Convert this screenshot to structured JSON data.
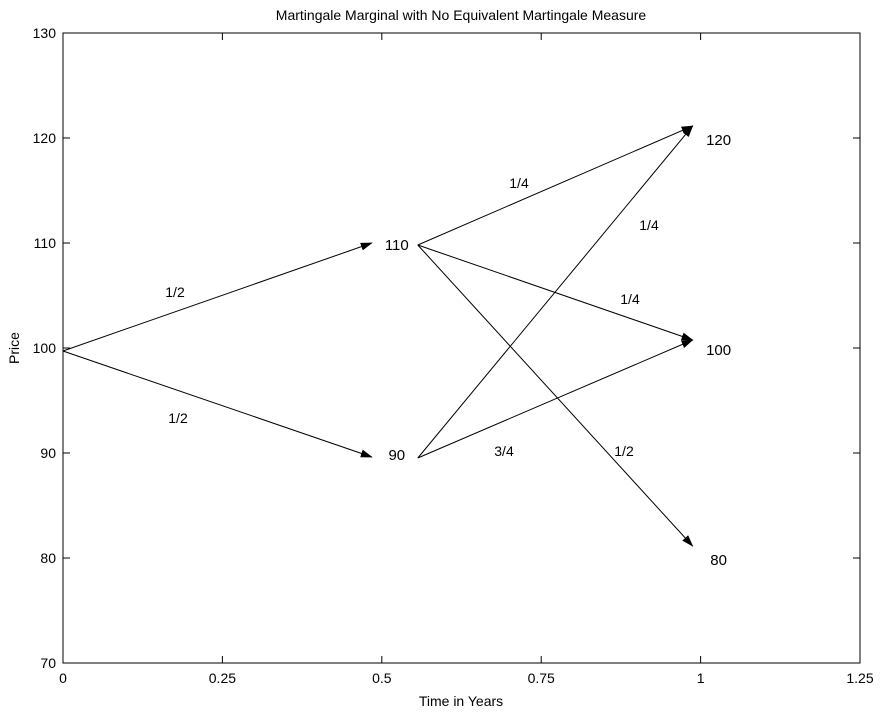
{
  "chart_data": {
    "type": "tree-diagram",
    "title": "Martingale Marginal with No Equivalent Martingale Measure",
    "xlabel": "Time in Years",
    "ylabel": "Price",
    "xlim": [
      0,
      1.25
    ],
    "ylim": [
      70,
      130
    ],
    "x_ticks": [
      0,
      0.25,
      0.5,
      0.75,
      1,
      1.25
    ],
    "x_tick_labels": [
      "0",
      "0.25",
      "0.5",
      "0.75",
      "1",
      "1.25"
    ],
    "y_ticks": [
      70,
      80,
      90,
      100,
      110,
      120,
      130
    ],
    "y_tick_labels": [
      "70",
      "80",
      "90",
      "100",
      "110",
      "120",
      "130"
    ],
    "nodes": [
      {
        "id": "n110",
        "label": "110",
        "t": 0.5,
        "price": 110
      },
      {
        "id": "n90",
        "label": "90",
        "t": 0.5,
        "price": 90
      },
      {
        "id": "n120",
        "label": "120",
        "t": 1,
        "price": 120
      },
      {
        "id": "n100",
        "label": "100",
        "t": 1,
        "price": 100
      },
      {
        "id": "n80",
        "label": "80",
        "t": 1,
        "price": 80
      }
    ],
    "edges": [
      {
        "from": [
          0,
          100
        ],
        "to": [
          0.5,
          110
        ],
        "label": "1/2"
      },
      {
        "from": [
          0,
          100
        ],
        "to": [
          0.5,
          90
        ],
        "label": "1/2"
      },
      {
        "from": [
          0.5,
          110
        ],
        "to": [
          1,
          120
        ],
        "label": "1/4"
      },
      {
        "from": [
          0.5,
          110
        ],
        "to": [
          1,
          100
        ],
        "label": "1/4"
      },
      {
        "from": [
          0.5,
          110
        ],
        "to": [
          1,
          80
        ],
        "label": "1/2"
      },
      {
        "from": [
          0.5,
          90
        ],
        "to": [
          1,
          120
        ],
        "label": "1/4"
      },
      {
        "from": [
          0.5,
          90
        ],
        "to": [
          1,
          100
        ],
        "label": "3/4"
      }
    ]
  }
}
